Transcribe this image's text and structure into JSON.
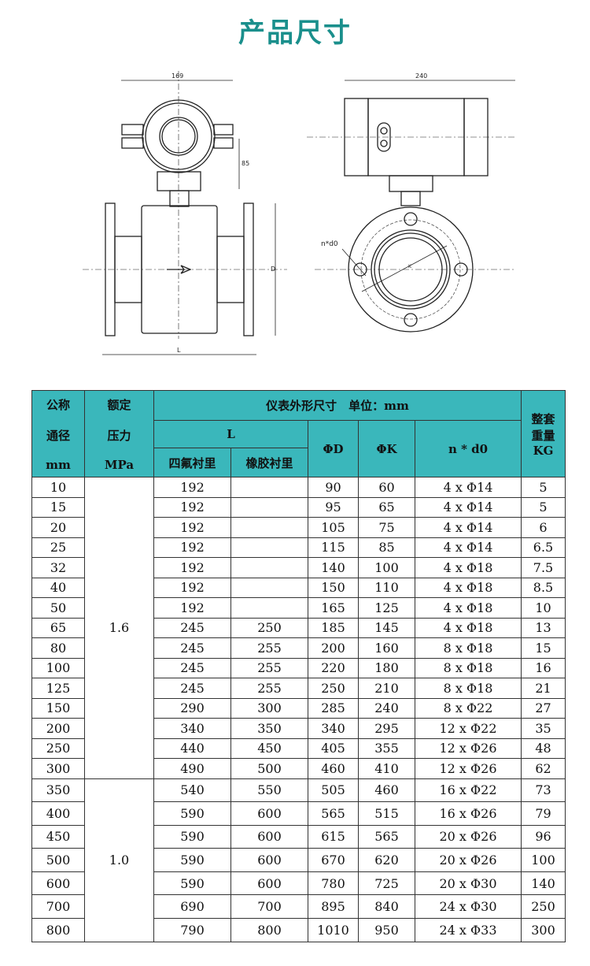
{
  "title": "产品尺寸",
  "drawing": {
    "width_label": "169",
    "side_width_label": "240",
    "height_label": "85",
    "d_label": "D",
    "l_label": "L",
    "bolt_label": "n*d0",
    "k_label": "K"
  },
  "table": {
    "header": {
      "dn": [
        "公称",
        "通径",
        "mm"
      ],
      "pressure": [
        "额定",
        "压力",
        "MPa"
      ],
      "dims": "仪表外形尺寸　单位：mm",
      "L": "L",
      "ptfe": "四氟衬里",
      "rubber": "橡胶衬里",
      "D": "ΦD",
      "K": "ΦK",
      "nd0": "n * d0",
      "weight": [
        "整套",
        "重量",
        "KG"
      ]
    },
    "colors": {
      "header_bg": "#3ab7bb",
      "title": "#1a8f8c"
    },
    "groups": [
      {
        "pressure": "1.6",
        "rows": [
          [
            "10",
            "192",
            "",
            "90",
            "60",
            "4 x Φ14",
            "5"
          ],
          [
            "15",
            "192",
            "",
            "95",
            "65",
            "4 x Φ14",
            "5"
          ],
          [
            "20",
            "192",
            "",
            "105",
            "75",
            "4 x Φ14",
            "6"
          ],
          [
            "25",
            "192",
            "",
            "115",
            "85",
            "4 x Φ14",
            "6.5"
          ],
          [
            "32",
            "192",
            "",
            "140",
            "100",
            "4 x Φ18",
            "7.5"
          ],
          [
            "40",
            "192",
            "",
            "150",
            "110",
            "4 x Φ18",
            "8.5"
          ],
          [
            "50",
            "192",
            "",
            "165",
            "125",
            "4 x Φ18",
            "10"
          ],
          [
            "65",
            "245",
            "250",
            "185",
            "145",
            "4 x Φ18",
            "13"
          ],
          [
            "80",
            "245",
            "255",
            "200",
            "160",
            "8 x Φ18",
            "15"
          ],
          [
            "100",
            "245",
            "255",
            "220",
            "180",
            "8 x Φ18",
            "16"
          ],
          [
            "125",
            "245",
            "255",
            "250",
            "210",
            "8 x Φ18",
            "21"
          ],
          [
            "150",
            "290",
            "300",
            "285",
            "240",
            "8 x Φ22",
            "27"
          ],
          [
            "200",
            "340",
            "350",
            "340",
            "295",
            "12 x Φ22",
            "35"
          ],
          [
            "250",
            "440",
            "450",
            "405",
            "355",
            "12 x Φ26",
            "48"
          ],
          [
            "300",
            "490",
            "500",
            "460",
            "410",
            "12 x Φ26",
            "62"
          ]
        ]
      },
      {
        "pressure": "1.0",
        "rows": [
          [
            "350",
            "540",
            "550",
            "505",
            "460",
            "16 x Φ22",
            "73"
          ],
          [
            "400",
            "590",
            "600",
            "565",
            "515",
            "16 x Φ26",
            "79"
          ],
          [
            "450",
            "590",
            "600",
            "615",
            "565",
            "20 x Φ26",
            "96"
          ],
          [
            "500",
            "590",
            "600",
            "670",
            "620",
            "20 x Φ26",
            "100"
          ],
          [
            "600",
            "590",
            "600",
            "780",
            "725",
            "20 x Φ30",
            "140"
          ],
          [
            "700",
            "690",
            "700",
            "895",
            "840",
            "24 x Φ30",
            "250"
          ],
          [
            "800",
            "790",
            "800",
            "1010",
            "950",
            "24 x Φ33",
            "300"
          ]
        ]
      }
    ]
  }
}
